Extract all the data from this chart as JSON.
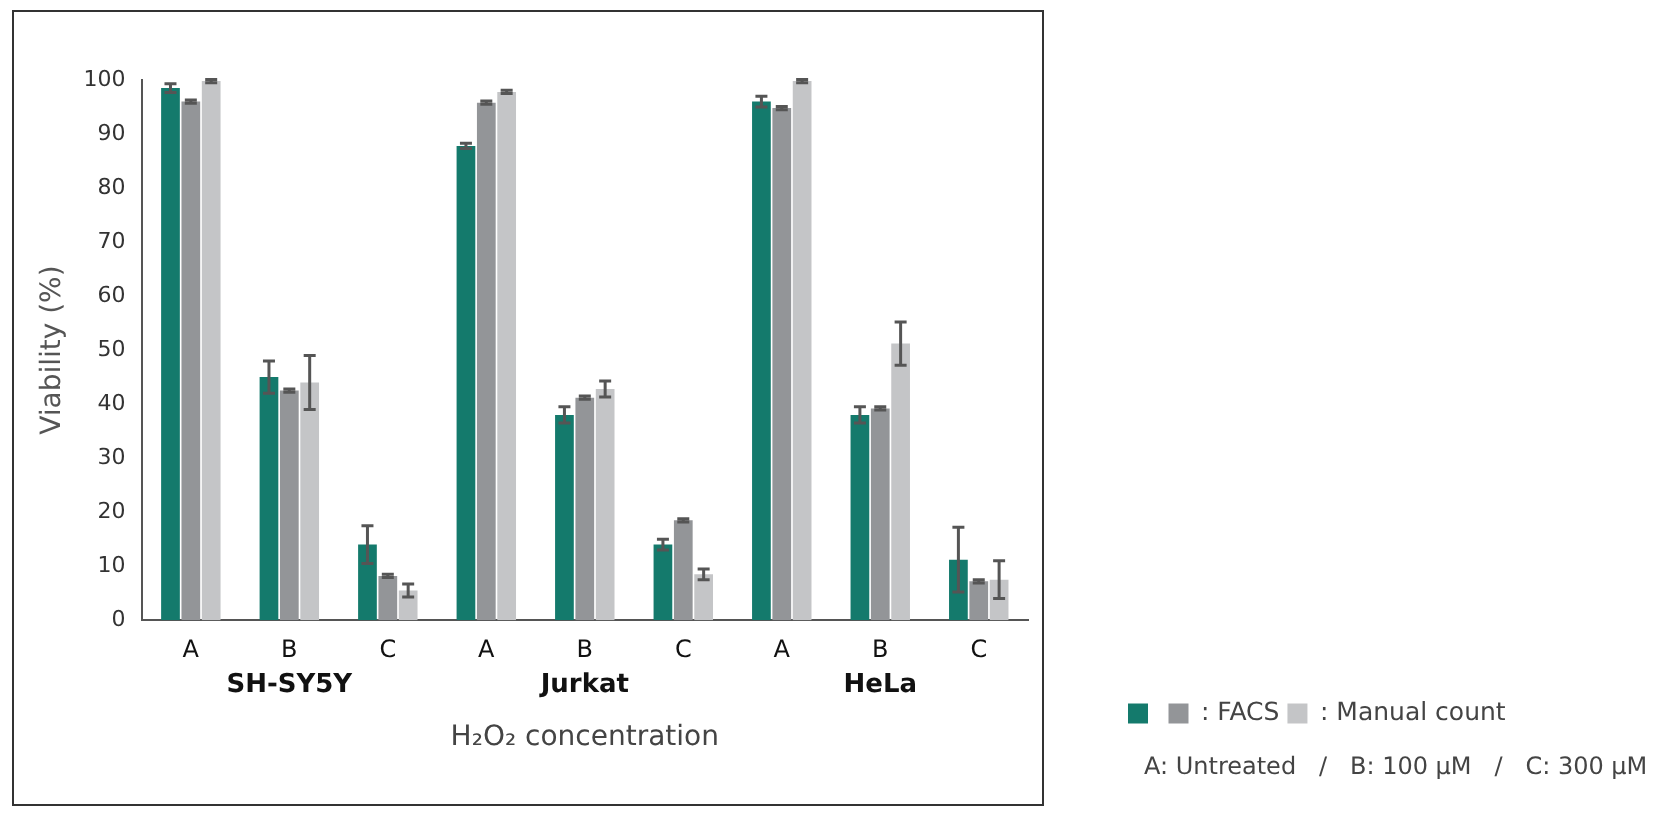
{
  "chart_data": {
    "type": "bar",
    "xlabel": "H₂O₂ concentration",
    "ylabel": "Viability (%)",
    "categories": [
      "A",
      "B",
      "C",
      "A",
      "B",
      "C",
      "A",
      "B",
      "C"
    ],
    "series": [
      {
        "color": "#147a6c",
        "values": [
          98.5,
          45,
          14,
          87.8,
          38,
          14,
          96,
          38,
          11.2
        ],
        "errors": [
          0.8,
          3,
          3.5,
          0.5,
          1.5,
          1,
          1,
          1.5,
          6
        ]
      },
      {
        "name": ": FACS",
        "color": "#939598",
        "values": [
          96,
          42.5,
          8.2,
          95.8,
          41.2,
          18.5,
          94.8,
          39.2,
          7.2
        ],
        "errors": [
          0.3,
          0.3,
          0.3,
          0.3,
          0.3,
          0.3,
          0.3,
          0.3,
          0.3
        ]
      },
      {
        "name": ": Manual count",
        "color": "#c4c5c7",
        "values": [
          99.8,
          44,
          5.5,
          97.8,
          42.8,
          8.5,
          99.8,
          51.2,
          7.5
        ],
        "errors": [
          0.3,
          5,
          1.2,
          0.3,
          1.5,
          1,
          0.3,
          4,
          3.5
        ]
      }
    ],
    "ylim": [
      0,
      100
    ],
    "yticks": [
      0,
      10,
      20,
      30,
      40,
      50,
      60,
      70,
      80,
      90,
      100
    ],
    "annotations": [
      "SH-SY5Y",
      "Jurkat",
      "HeLa",
      "A: Untreated   /   B: 100 μM   /   C: 300 μM"
    ],
    "legend": "bottom right",
    "grid": false
  }
}
